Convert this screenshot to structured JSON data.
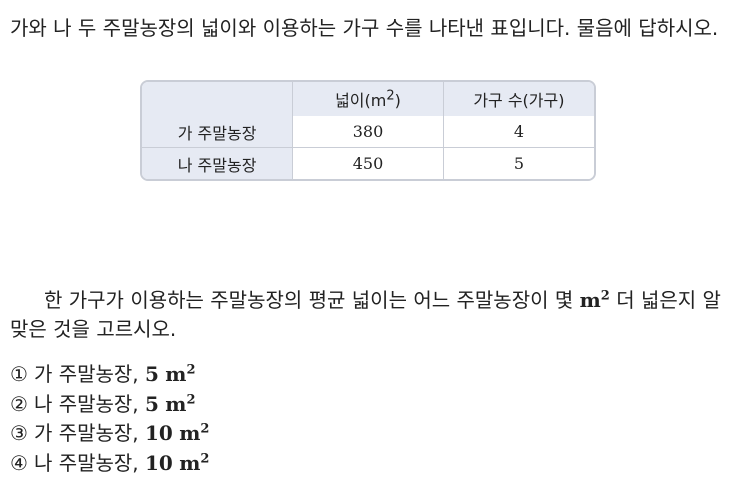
{
  "intro": {
    "text": "가와 나 두 주말농장의 넓이와 이용하는 가구 수를 나타낸 표입니다. 물음에 답하시오."
  },
  "table": {
    "headers": {
      "blank": "",
      "area_base": "넓이(m",
      "area_sup": "2",
      "area_close": ")",
      "households": "가구 수(가구)"
    },
    "rows": [
      {
        "farm": "가 주말농장",
        "area": "380",
        "households": "4"
      },
      {
        "farm": "나 주말농장",
        "area": "450",
        "households": "5"
      }
    ]
  },
  "question": {
    "before": "한 가구가 이용하는 주말농장의 평균 넓이는 어느 주말농장이 몇 ",
    "unit": "m",
    "unit_sup": "2",
    "after": " 더 넓은지 알맞은 것을 고르시오."
  },
  "choices": [
    {
      "num": "①",
      "farm": "가 주말농장,",
      "value": "5",
      "unit": "m",
      "sup": "2"
    },
    {
      "num": "②",
      "farm": "나 주말농장,",
      "value": "5",
      "unit": "m",
      "sup": "2"
    },
    {
      "num": "③",
      "farm": "가 주말농장,",
      "value": "10",
      "unit": "m",
      "sup": "2"
    },
    {
      "num": "④",
      "farm": "나 주말농장,",
      "value": "10",
      "unit": "m",
      "sup": "2"
    }
  ]
}
